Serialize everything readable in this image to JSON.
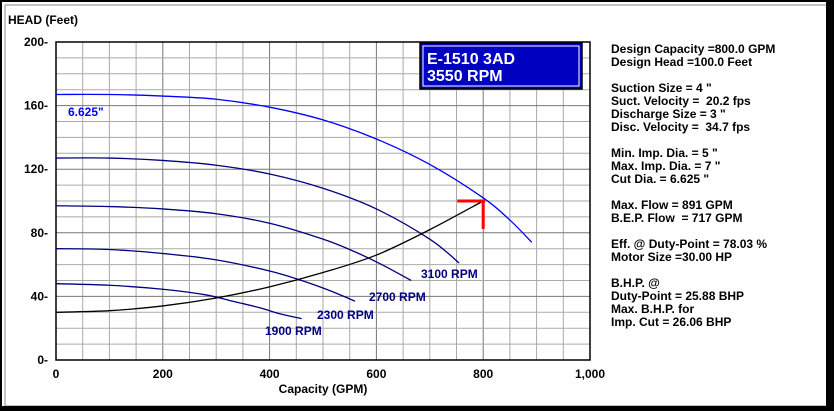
{
  "chart_data": {
    "type": "line",
    "ylabel": "HEAD (Feet)",
    "xlabel": "Capacity (GPM)",
    "xlim": [
      0,
      1000
    ],
    "ylim": [
      0,
      200
    ],
    "x_ticks": [
      {
        "value": 0,
        "label": "0"
      },
      {
        "value": 200,
        "label": "200"
      },
      {
        "value": 400,
        "label": "400"
      },
      {
        "value": 600,
        "label": "600"
      },
      {
        "value": 800,
        "label": "800"
      },
      {
        "value": 1000,
        "label": "1,000"
      }
    ],
    "y_ticks": [
      {
        "value": 0,
        "label": "0-"
      },
      {
        "value": 40,
        "label": "40-"
      },
      {
        "value": 80,
        "label": "80-"
      },
      {
        "value": 120,
        "label": "120-"
      },
      {
        "value": 160,
        "label": "160-"
      },
      {
        "value": 200,
        "label": "200-"
      }
    ],
    "grid": true,
    "title_box": {
      "line1": "E-1510 3AD",
      "line2": "3550 RPM",
      "bg": "#0000c0"
    },
    "series": [
      {
        "name": "6.625\"",
        "color": "#0000ff",
        "x": [
          0,
          100,
          200,
          300,
          400,
          500,
          600,
          700,
          800,
          850,
          891
        ],
        "y": [
          167,
          167,
          166,
          164,
          159,
          151,
          139,
          123,
          102,
          88,
          74
        ]
      },
      {
        "name": "3100 RPM",
        "color": "#000080",
        "x": [
          0,
          100,
          200,
          300,
          400,
          500,
          600,
          700,
          755
        ],
        "y": [
          127,
          127,
          125.5,
          122.5,
          117,
          108,
          95,
          76,
          61
        ]
      },
      {
        "name": "2700 RPM",
        "color": "#000080",
        "x": [
          0,
          100,
          200,
          300,
          400,
          500,
          560,
          610,
          665
        ],
        "y": [
          97,
          96.5,
          95,
          92,
          86,
          76,
          68,
          60,
          50
        ]
      },
      {
        "name": "2300 RPM",
        "color": "#000080",
        "x": [
          0,
          100,
          200,
          300,
          400,
          460,
          510,
          560
        ],
        "y": [
          70,
          69.5,
          67,
          63,
          56,
          50,
          44,
          37
        ]
      },
      {
        "name": "1900 RPM",
        "color": "#000080",
        "x": [
          0,
          100,
          200,
          280,
          330,
          380,
          420,
          460
        ],
        "y": [
          48,
          47,
          44.5,
          41,
          37,
          33,
          29,
          26
        ]
      },
      {
        "name": "System Curve",
        "color": "#000000",
        "x": [
          0,
          100,
          200,
          300,
          400,
          500,
          600,
          700,
          800
        ],
        "y": [
          30,
          31,
          34,
          39,
          46,
          55,
          66,
          82,
          100
        ]
      }
    ],
    "annotations": [
      {
        "text": "6.625\"",
        "color": "#0000ff"
      },
      {
        "text": "3100 RPM",
        "color": "#000080"
      },
      {
        "text": "2700 RPM",
        "color": "#000080"
      },
      {
        "text": "2300 RPM",
        "color": "#000080"
      },
      {
        "text": "1900 RPM",
        "color": "#000080"
      }
    ],
    "duty_point": {
      "x": 800,
      "y": 100,
      "color": "#ff0000"
    }
  },
  "info": {
    "design_capacity": "Design Capacity =800.0 GPM",
    "design_head": "Design Head =100.0 Feet",
    "suction_size": "Suction Size = 4 \"",
    "suct_velocity": "Suct. Velocity =  20.2 fps",
    "discharge_size": "Discharge Size = 3 \"",
    "disc_velocity": "Disc. Velocity =  34.7 fps",
    "min_imp_dia": "Min. Imp. Dia. = 5 \"",
    "max_imp_dia": "Max. Imp. Dia. = 7 \"",
    "cut_dia": "Cut Dia. = 6.625 \"",
    "max_flow": "Max. Flow = 891 GPM",
    "bep_flow": "B.E.P. Flow  = 717 GPM",
    "eff_duty": "Eff. @ Duty-Point = 78.03 %",
    "motor_size": "Motor Size =30.00 HP",
    "bhp_at": "B.H.P. @",
    "bhp_duty": "Duty-Point = 25.88 BHP",
    "max_bhp_for": "Max. B.H.P. for",
    "imp_cut": "Imp. Cut = 26.06 BHP"
  }
}
